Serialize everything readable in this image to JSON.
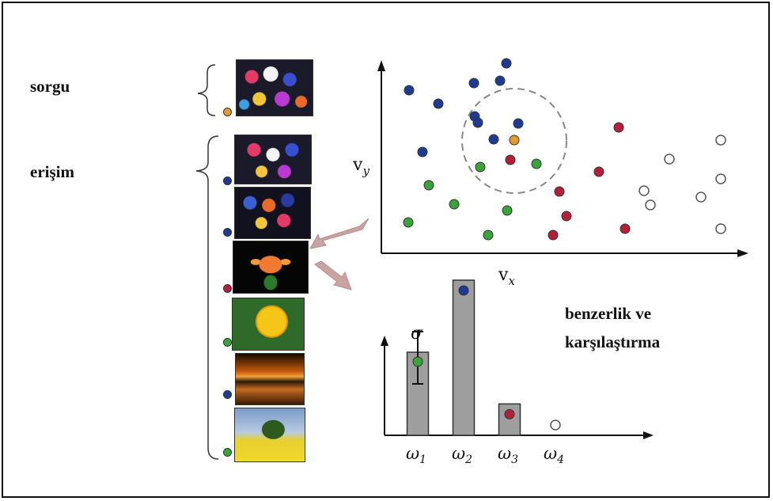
{
  "labels": {
    "query": "sorgu",
    "retrieval": "erişim",
    "similarity_line1": "benzerlik ve",
    "similarity_line2": "karşılaştırma"
  },
  "scatter": {
    "x_label_base": "v",
    "x_label_sub": "x",
    "y_label_base": "v",
    "y_label_sub": "y"
  },
  "bar_chart": {
    "sigma": "σ",
    "categories": [
      "ω",
      "ω",
      "ω",
      "ω"
    ],
    "subscripts": [
      "1",
      "2",
      "3",
      "4"
    ]
  },
  "colors": {
    "blue": "#1f3a93",
    "green": "#3aa33a",
    "red": "#b3203a",
    "orange": "#e69a2e",
    "white": "#ffffff",
    "bar": "#9e9e9e"
  },
  "chart_data": {
    "type": "bar",
    "categories": [
      "ω1",
      "ω2",
      "ω3",
      "ω4"
    ],
    "values": [
      0.45,
      0.84,
      0.17,
      0.0
    ],
    "series_colors": [
      "green",
      "blue",
      "red",
      "white"
    ],
    "error_bar": {
      "category": "ω1",
      "label": "σ"
    }
  }
}
